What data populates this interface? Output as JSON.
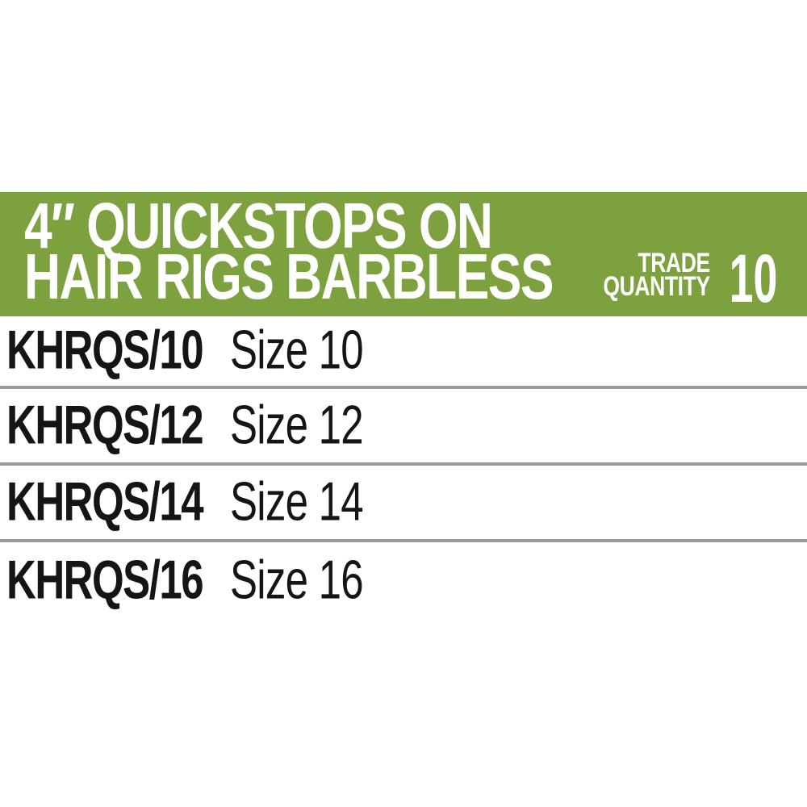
{
  "banner": {
    "title_line1": "4″ QUICKSTOPS ON",
    "title_line2": "HAIR RIGS BARBLESS",
    "trade_label_line1": "TRADE",
    "trade_label_line2": "QUANTITY",
    "trade_quantity_value": "10",
    "background_color": "#7CA13E",
    "text_color": "#FFFFFF"
  },
  "table": {
    "divider_color": "#9A9A9A",
    "text_color": "#151515",
    "rows": [
      {
        "code": "KHRQS/10",
        "size": "Size 10"
      },
      {
        "code": "KHRQS/12",
        "size": "Size 12"
      },
      {
        "code": "KHRQS/14",
        "size": "Size 14"
      },
      {
        "code": "KHRQS/16",
        "size": "Size 16"
      }
    ]
  }
}
